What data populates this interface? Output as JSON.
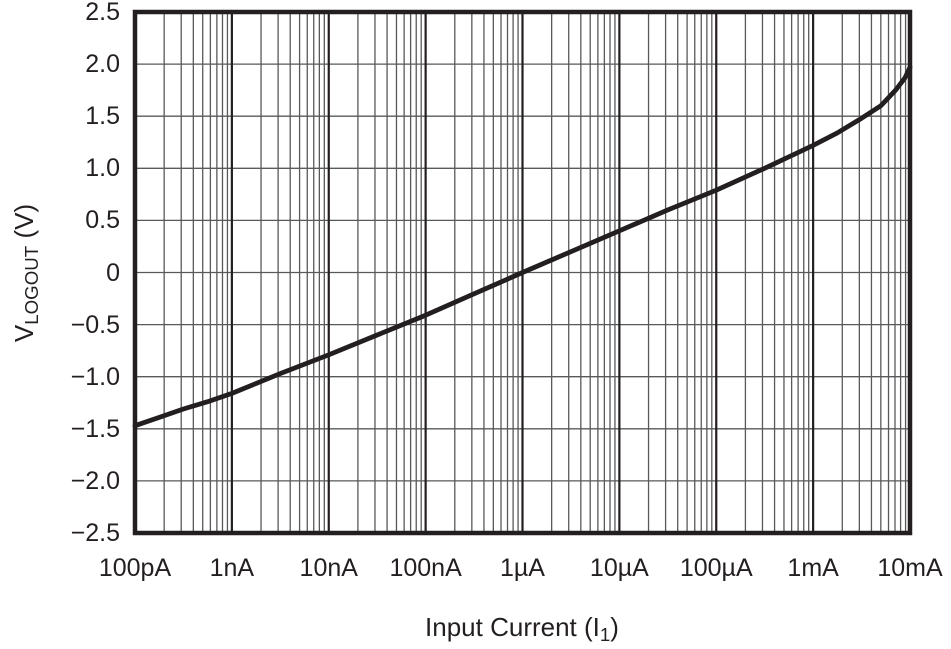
{
  "page": {
    "background_color": "#FFFFFF"
  },
  "chart_data": {
    "type": "line",
    "title": "",
    "x_scale": "log",
    "y_scale": "linear",
    "x_range_amps": [
      1e-10,
      0.01
    ],
    "y_range_volts": [
      -2.5,
      2.5
    ],
    "xlabel": {
      "pre": "Input Current (I",
      "sub": "1",
      "post": ")"
    },
    "ylabel": {
      "pre": "V",
      "sub": "LOGOUT",
      "post": " (V)"
    },
    "x_tick_values": [
      1e-10,
      1e-09,
      1e-08,
      1e-07,
      1e-06,
      1e-05,
      0.0001,
      0.001,
      0.01
    ],
    "x_tick_labels": [
      "100pA",
      "1nA",
      "10nA",
      "100nA",
      "1µA",
      "10µA",
      "100µA",
      "1mA",
      "10mA"
    ],
    "y_tick_values": [
      2.5,
      2.0,
      1.5,
      1.0,
      0.5,
      0,
      -0.5,
      -1.0,
      -1.5,
      -2.0,
      -2.5
    ],
    "y_tick_labels": [
      "2.5",
      "2.0",
      "1.5",
      "1.0",
      "0.5",
      "0",
      "−0.5",
      "−1.0",
      "−1.5",
      "−2.0",
      "−2.5"
    ],
    "grid": {
      "vertical": "log decades with minor divisions 2-9",
      "horizontal_step_volts": 0.5,
      "legend": "none"
    },
    "series": [
      {
        "name": "VLOGOUT vs Input Current",
        "points": [
          [
            1e-10,
            -1.47
          ],
          [
            1.78e-10,
            -1.39
          ],
          [
            3.16e-10,
            -1.31
          ],
          [
            5.62e-10,
            -1.24
          ],
          [
            1e-09,
            -1.16
          ],
          [
            3.16e-09,
            -0.97
          ],
          [
            1e-08,
            -0.79
          ],
          [
            3.16e-08,
            -0.6
          ],
          [
            1e-07,
            -0.41
          ],
          [
            3.16e-07,
            -0.205
          ],
          [
            1e-06,
            0.0
          ],
          [
            3.16e-06,
            0.2
          ],
          [
            1e-05,
            0.4
          ],
          [
            3.16e-05,
            0.6
          ],
          [
            0.0001,
            0.79
          ],
          [
            0.000316,
            1.0
          ],
          [
            0.001,
            1.22
          ],
          [
            0.00178,
            1.34
          ],
          [
            0.00316,
            1.48
          ],
          [
            0.005,
            1.6
          ],
          [
            0.0071,
            1.75
          ],
          [
            0.0089,
            1.87
          ],
          [
            0.01,
            1.97
          ]
        ]
      }
    ],
    "colors": {
      "line": "#231F20",
      "frame": "#231F20",
      "decade_grid": "#231F20",
      "minor_grid": "#58595B",
      "horizontal_grid": "#58595B",
      "text": "#231F20",
      "background": "#FFFFFF"
    }
  }
}
